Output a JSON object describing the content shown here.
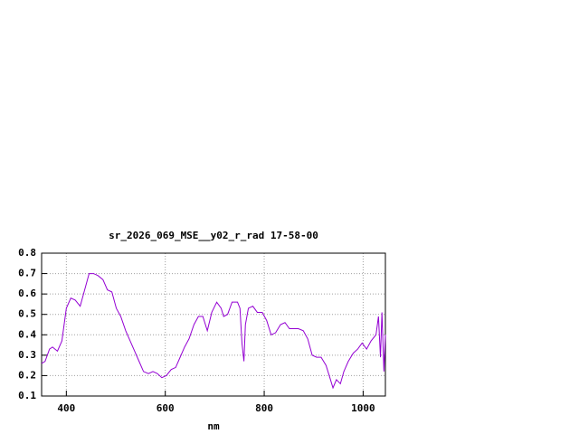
{
  "chart_data": {
    "type": "line",
    "title": "sr_2026_069_MSE__y02_r_rad 17-58-00",
    "x_label": "nm",
    "x": [
      350,
      357,
      366,
      372,
      382,
      391,
      400,
      409,
      418,
      428,
      437,
      446,
      455,
      464,
      474,
      483,
      492,
      501,
      510,
      520,
      529,
      538,
      547,
      556,
      566,
      575,
      584,
      593,
      602,
      612,
      621,
      630,
      639,
      648,
      658,
      667,
      676,
      685,
      694,
      704,
      713,
      718,
      726,
      735,
      746,
      751,
      755,
      759,
      762,
      768,
      777,
      786,
      796,
      805,
      814,
      823,
      833,
      842,
      851,
      860,
      869,
      879,
      888,
      897,
      906,
      915,
      925,
      934,
      939,
      946,
      954,
      961,
      970,
      980,
      989,
      998,
      1007,
      1016,
      1026,
      1031,
      1035,
      1038,
      1042,
      1045
    ],
    "series": [
      {
        "color": "#9400d3",
        "values": [
          0.26,
          0.27,
          0.33,
          0.34,
          0.32,
          0.37,
          0.53,
          0.58,
          0.57,
          0.54,
          0.62,
          0.7,
          0.7,
          0.69,
          0.67,
          0.62,
          0.61,
          0.53,
          0.49,
          0.42,
          0.37,
          0.32,
          0.27,
          0.22,
          0.21,
          0.22,
          0.21,
          0.19,
          0.2,
          0.23,
          0.24,
          0.29,
          0.34,
          0.38,
          0.45,
          0.49,
          0.49,
          0.42,
          0.51,
          0.56,
          0.53,
          0.49,
          0.5,
          0.56,
          0.56,
          0.53,
          0.36,
          0.27,
          0.45,
          0.53,
          0.54,
          0.51,
          0.51,
          0.47,
          0.4,
          0.41,
          0.45,
          0.46,
          0.43,
          0.43,
          0.43,
          0.42,
          0.38,
          0.3,
          0.29,
          0.29,
          0.25,
          0.18,
          0.14,
          0.18,
          0.16,
          0.22,
          0.27,
          0.31,
          0.33,
          0.36,
          0.33,
          0.37,
          0.4,
          0.49,
          0.29,
          0.51,
          0.22,
          0.4
        ]
      }
    ],
    "xlim": [
      350,
      1045
    ],
    "xticks": [
      400,
      600,
      800,
      1000
    ],
    "ylim": [
      0.1,
      0.8
    ],
    "yticks": [
      0.1,
      0.2,
      0.3,
      0.4,
      0.5,
      0.6,
      0.7,
      0.8
    ],
    "grid": true
  }
}
